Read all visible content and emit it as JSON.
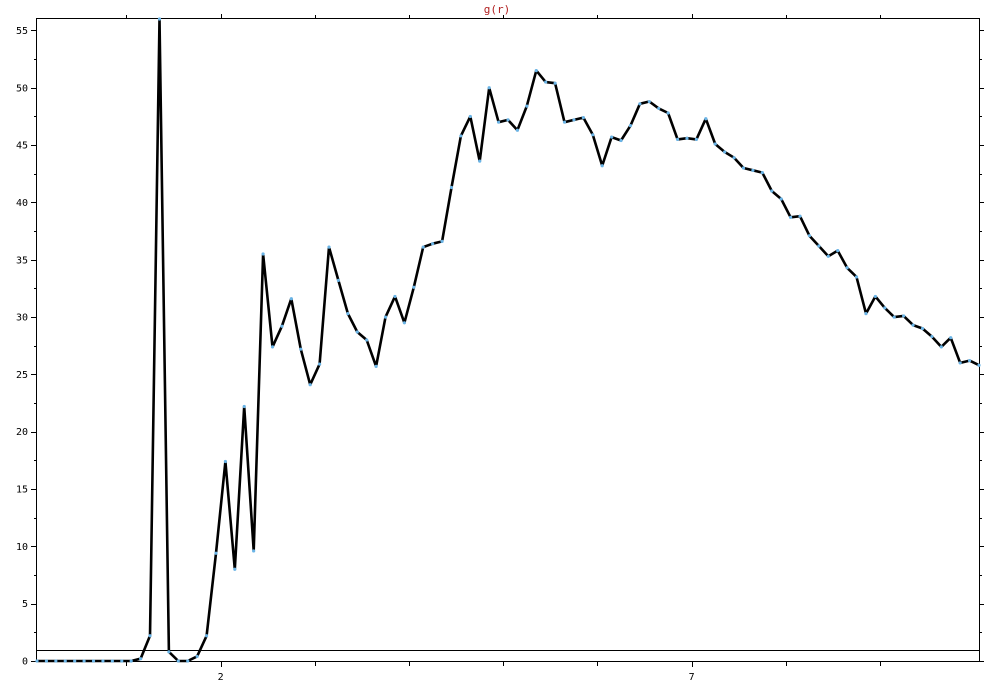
{
  "chart_data": {
    "type": "line",
    "title": "g(r)",
    "xlabel": "",
    "ylabel": "",
    "xlim": [
      0.05,
      10.05
    ],
    "ylim": [
      0,
      56
    ],
    "grid": false,
    "x_tick_labels": [
      {
        "value": 2,
        "label": "2"
      },
      {
        "value": 7,
        "label": "7"
      }
    ],
    "x_minor_ticks": [
      1,
      3,
      4,
      5,
      6,
      8,
      9
    ],
    "y_ticks": [
      0,
      5,
      10,
      15,
      20,
      25,
      30,
      35,
      40,
      45,
      50,
      55
    ],
    "y_minor_step": 2.5,
    "reference_line": 1,
    "series": [
      {
        "color": "#000000",
        "marker_color": "#6ab4e6",
        "x": [
          0.05,
          0.15,
          0.25,
          0.35,
          0.45,
          0.55,
          0.65,
          0.75,
          0.85,
          0.95,
          1.05,
          1.15,
          1.25,
          1.35,
          1.45,
          1.55,
          1.65,
          1.75,
          1.85,
          1.95,
          2.05,
          2.15,
          2.25,
          2.35,
          2.45,
          2.55,
          2.65,
          2.75,
          2.85,
          2.95,
          3.05,
          3.15,
          3.25,
          3.35,
          3.45,
          3.55,
          3.65,
          3.75,
          3.85,
          3.95,
          4.05,
          4.15,
          4.25,
          4.35,
          4.45,
          4.55,
          4.65,
          4.75,
          4.85,
          4.95,
          5.05,
          5.15,
          5.25,
          5.35,
          5.45,
          5.55,
          5.65,
          5.75,
          5.85,
          5.95,
          6.05,
          6.15,
          6.25,
          6.35,
          6.45,
          6.55,
          6.65,
          6.75,
          6.85,
          6.95,
          7.05,
          7.15,
          7.25,
          7.35,
          7.45,
          7.55,
          7.65,
          7.75,
          7.85,
          7.95,
          8.05,
          8.15,
          8.25,
          8.35,
          8.45,
          8.55,
          8.65,
          8.75,
          8.85,
          8.95,
          9.05,
          9.15,
          9.25,
          9.35,
          9.45,
          9.55,
          9.65,
          9.75,
          9.85,
          9.95,
          10.05
        ],
        "values": [
          0,
          0,
          0,
          0,
          0,
          0,
          0,
          0,
          0,
          0,
          0,
          0.2,
          2.2,
          56,
          0.8,
          0,
          0,
          0.4,
          2.2,
          9.4,
          17.4,
          8.0,
          22.2,
          9.6,
          35.5,
          27.4,
          29.2,
          31.6,
          27.2,
          24.1,
          25.9,
          36.1,
          33.2,
          30.3,
          28.7,
          28.0,
          25.7,
          30.0,
          31.8,
          29.5,
          32.6,
          36.1,
          36.4,
          36.6,
          41.3,
          45.8,
          47.5,
          43.6,
          50.0,
          47.0,
          47.2,
          46.3,
          48.4,
          51.5,
          50.5,
          50.4,
          47.0,
          47.2,
          47.4,
          45.9,
          43.2,
          45.7,
          45.4,
          46.7,
          48.6,
          48.8,
          48.2,
          47.8,
          45.5,
          45.6,
          45.5,
          47.3,
          45.1,
          44.4,
          43.9,
          43.0,
          42.8,
          42.6,
          41.0,
          40.3,
          38.7,
          38.8,
          37.1,
          36.2,
          35.3,
          35.8,
          34.3,
          33.5,
          30.3,
          31.8,
          30.8,
          30.0,
          30.1,
          29.3,
          29.0,
          28.3,
          27.4,
          28.2,
          26.0,
          26.2,
          25.8
        ]
      }
    ]
  }
}
